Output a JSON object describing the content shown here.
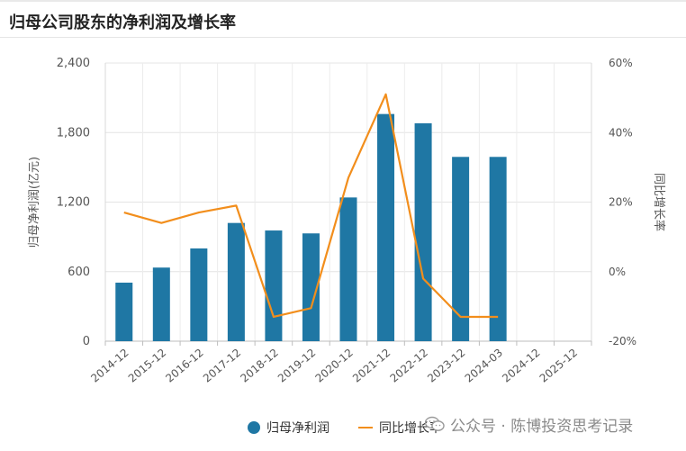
{
  "header": {
    "title": "归母公司股东的净利润及增长率"
  },
  "chart_data": {
    "type": "bar+line",
    "categories": [
      "2014-12",
      "2015-12",
      "2016-12",
      "2017-12",
      "2018-12",
      "2019-12",
      "2020-12",
      "2021-12",
      "2022-12",
      "2023-12",
      "2024-03",
      "2024-12",
      "2025-12"
    ],
    "series": [
      {
        "name": "归母净利润",
        "type": "bar",
        "axis": "left",
        "color": "#1f77a4",
        "values": [
          505,
          635,
          800,
          1020,
          955,
          930,
          1240,
          1960,
          1880,
          1590,
          1590,
          null,
          null
        ]
      },
      {
        "name": "同比增长率",
        "type": "line",
        "axis": "right",
        "color": "#f28e1c",
        "values": [
          17,
          14,
          17,
          19,
          -13,
          -10.5,
          27,
          51,
          -2,
          -13,
          -13,
          null,
          null
        ]
      }
    ],
    "y_left": {
      "label": "归母净利润(亿元)",
      "ylim": [
        0,
        2400
      ],
      "ticks": [
        "0",
        "600",
        "1,200",
        "1,800",
        "2,400"
      ]
    },
    "y_right": {
      "label": "同比增长率",
      "ylim": [
        -20,
        60
      ],
      "ticks": [
        "-20%",
        "0%",
        "20%",
        "40%",
        "60%"
      ]
    },
    "grid": true,
    "legend_position": "bottom"
  },
  "watermark": {
    "text": "公众号 · 陈博投资思考记录",
    "icon": "wechat-icon"
  }
}
